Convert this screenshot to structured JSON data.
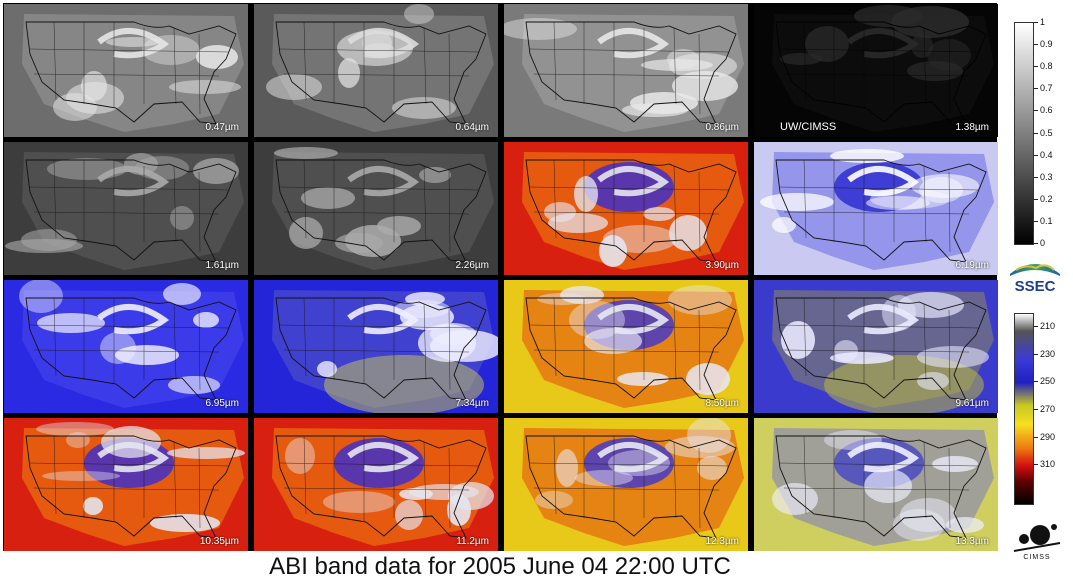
{
  "panels": [
    {
      "band": "0.47µm",
      "credit": "",
      "palette": "vis_bright"
    },
    {
      "band": "0.64µm",
      "credit": "",
      "palette": "vis"
    },
    {
      "band": "0.86µm",
      "credit": "",
      "palette": "vis_light"
    },
    {
      "band": "1.38µm",
      "credit": "UW/CIMSS",
      "palette": "dark"
    },
    {
      "band": "1.61µm",
      "credit": "",
      "palette": "vis_dark"
    },
    {
      "band": "2.26µm",
      "credit": "",
      "palette": "vis_dark"
    },
    {
      "band": "3.90µm",
      "credit": "",
      "palette": "ir_hot"
    },
    {
      "band": "6.19µm",
      "credit": "",
      "palette": "wv_light"
    },
    {
      "band": "6.95µm",
      "credit": "",
      "palette": "wv_blue"
    },
    {
      "band": "7.34µm",
      "credit": "",
      "palette": "wv_deep"
    },
    {
      "band": "8.50µm",
      "credit": "",
      "palette": "ir_mixed"
    },
    {
      "band": "9.61µm",
      "credit": "",
      "palette": "ozone"
    },
    {
      "band": "10.35µm",
      "credit": "",
      "palette": "ir_hot"
    },
    {
      "band": "11.2µm",
      "credit": "",
      "palette": "ir_hot"
    },
    {
      "band": "12.3µm",
      "credit": "",
      "palette": "ir_mixed"
    },
    {
      "band": "13.3µm",
      "credit": "",
      "palette": "co2"
    }
  ],
  "reflectance_scale": {
    "ticks": [
      "1",
      "0.9",
      "0.8",
      "0.7",
      "0.6",
      "0.5",
      "0.4",
      "0.3",
      "0.2",
      "0.1",
      "0"
    ]
  },
  "temperature_scale": {
    "ticks": [
      "210",
      "230",
      "250",
      "270",
      "290",
      "310"
    ]
  },
  "logos": {
    "ssec": "SSEC",
    "cimss": "CIMSS"
  },
  "caption": "ABI band data for 2005 June 04 22:00 UTC",
  "colors": {
    "grid_background": "#000000",
    "ir_hot": "#e02810",
    "ir_cold": "#2a2ae0",
    "cloud": "#f2f2f2"
  }
}
